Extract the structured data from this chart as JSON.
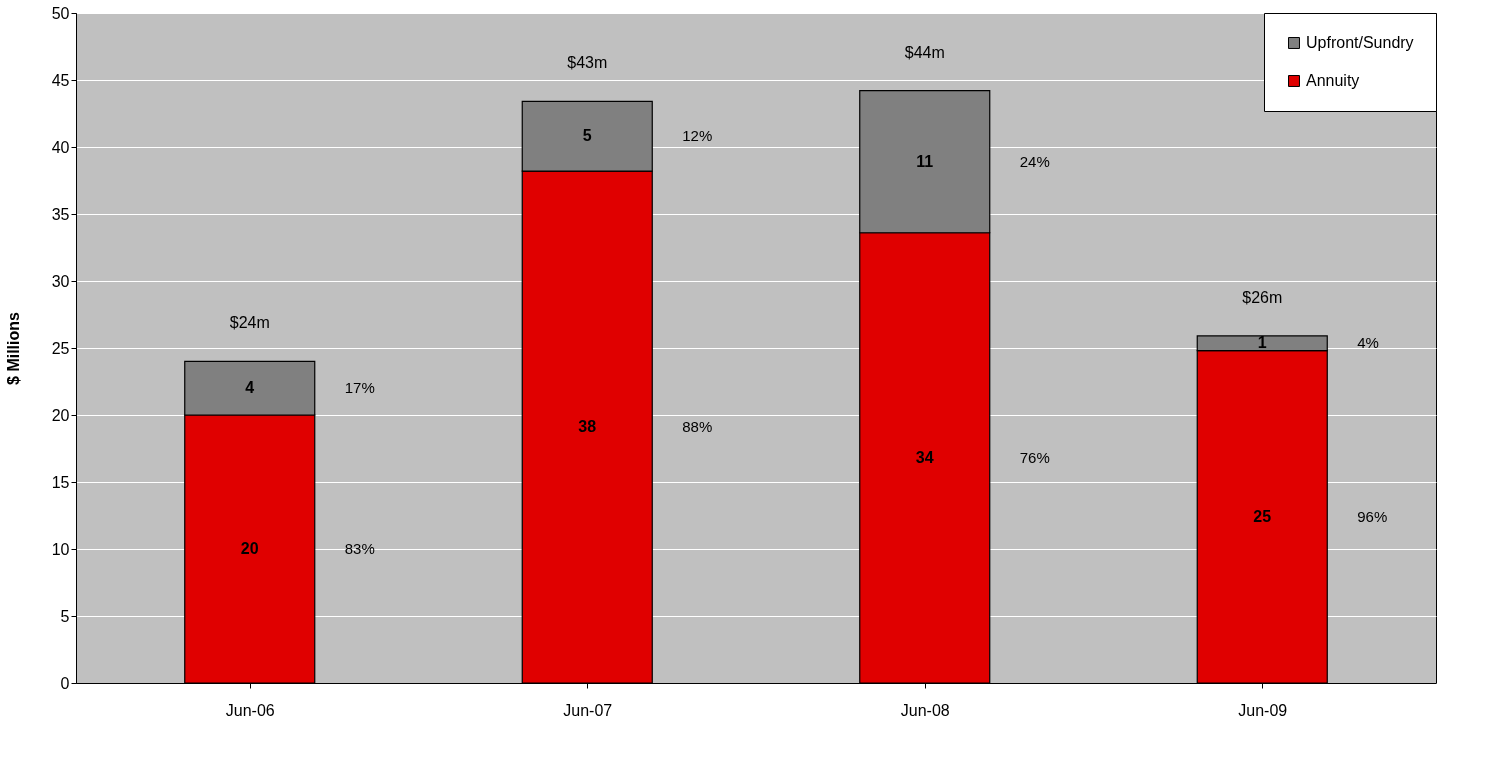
{
  "chart_data": {
    "type": "bar",
    "stacked": true,
    "ylabel": "$ Millions",
    "categories": [
      "Jun-06",
      "Jun-07",
      "Jun-08",
      "Jun-09"
    ],
    "series": [
      {
        "name": "Annuity",
        "color": "#e00000",
        "values": [
          20,
          38.2,
          33.6,
          24.8
        ],
        "value_labels": [
          "20",
          "38",
          "34",
          "25"
        ]
      },
      {
        "name": "Upfront/Sundry",
        "color": "#808080",
        "values": [
          4,
          5.2,
          10.6,
          1.1
        ],
        "value_labels": [
          "4",
          "5",
          "11",
          "1"
        ]
      }
    ],
    "totals": [
      "$24m",
      "$43m",
      "$44m",
      "$26m"
    ],
    "ylim": [
      0,
      50
    ],
    "yticks": [
      0,
      5,
      10,
      15,
      20,
      25,
      30,
      35,
      40,
      45,
      50
    ],
    "grid": "y",
    "legend": "top right",
    "annotations": [
      "83%",
      "17%",
      "88%",
      "12%",
      "76%",
      "24%",
      "96%",
      "4%"
    ]
  }
}
